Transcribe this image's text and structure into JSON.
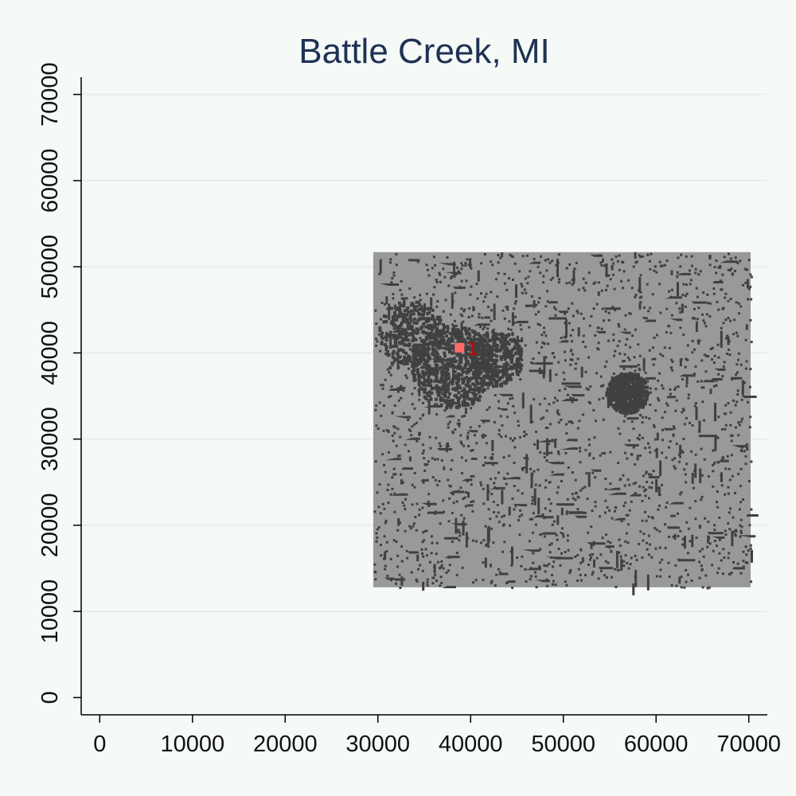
{
  "chart_data": {
    "type": "heatmap",
    "title": "Battle Creek, MI",
    "xlabel": "",
    "ylabel": "",
    "xlim": [
      -2000,
      72000
    ],
    "ylim": [
      -2000,
      72000
    ],
    "xticks": [
      0,
      10000,
      20000,
      30000,
      40000,
      50000,
      60000,
      70000
    ],
    "yticks": [
      0,
      10000,
      20000,
      30000,
      40000,
      50000,
      60000,
      70000
    ],
    "grid": true,
    "colors": {
      "background": "#f5faf7",
      "grid": "#e6efee",
      "land": "#999999",
      "developed": "#404040",
      "highlight": "#ff6b6b",
      "annotation": "#d40000"
    },
    "raster_extent": {
      "x": [
        29500,
        70200
      ],
      "y": [
        12800,
        51700
      ]
    },
    "highlight_cells": [
      {
        "x": 38800,
        "y": 40600,
        "label": "1"
      }
    ]
  }
}
